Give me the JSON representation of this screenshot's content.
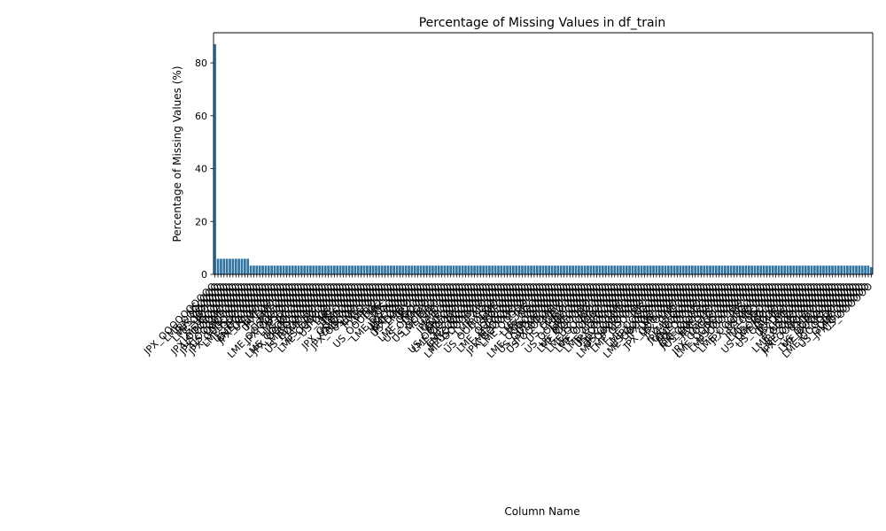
{
  "chart_data": {
    "type": "bar",
    "title": "Percentage of Missing Values in df_train",
    "xlabel": "Column Name",
    "ylabel": "Percentage of Missing Values (%)",
    "ylim": [
      0,
      91.4
    ],
    "yticks": [
      0,
      20,
      40,
      60,
      80
    ],
    "grid": false,
    "legend": "none",
    "bar_color": "#3274a1",
    "categories_note_free": true,
    "segments": [
      {
        "count": 1,
        "value": 87.1
      },
      {
        "count": 11,
        "value": 5.9
      },
      {
        "count": 208,
        "value": 3.3
      },
      {
        "count": 1,
        "value": 2.7
      }
    ],
    "visible_category_fragments": [
      "JPX_",
      "US_",
      "LME_"
    ]
  }
}
